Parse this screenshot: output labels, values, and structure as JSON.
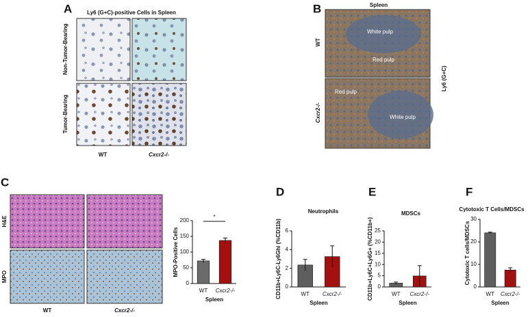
{
  "panels": {
    "a": {
      "label": "A",
      "title": "Ly6 (G+C)-positive Cells in Spleen",
      "rows": [
        "Non-Tumor-Bearing",
        "Tumor-Bearing"
      ],
      "cols": [
        "WT",
        "Cxcr2-/-"
      ]
    },
    "b": {
      "label": "B",
      "title": "Spleen",
      "rows": [
        "WT",
        "Cxcr2-/-"
      ],
      "stain": "Ly6 (G+C)",
      "regions": [
        "White pulp",
        "Red pulp",
        "Red pulp",
        "White pulp"
      ]
    },
    "c": {
      "label": "C",
      "rows": [
        "H&E",
        "MPO"
      ],
      "cols": [
        "WT",
        "Cxcr2-/-"
      ]
    },
    "d": {
      "label": "D"
    },
    "e": {
      "label": "E"
    },
    "f": {
      "label": "F"
    }
  },
  "chart_data": [
    {
      "type": "bar",
      "y_label": "MPO-Positive Cells",
      "x_label": "Spleen",
      "categories": [
        "WT",
        "Cxcr2-/-"
      ],
      "values": [
        72,
        137
      ],
      "errors": [
        5,
        8
      ],
      "colors": [
        "#6b6b6b",
        "#a3100f"
      ],
      "ylim": [
        0,
        200
      ],
      "yticks": [
        0,
        50,
        100,
        150,
        200
      ],
      "annotation": "*"
    },
    {
      "type": "bar",
      "title": "Neutrophils",
      "y_label": "CD11b+Ly6C-Ly6Ghi (%CD11b)",
      "x_label": "Spleen",
      "categories": [
        "WT",
        "Cxcr2-/-"
      ],
      "values": [
        2.35,
        3.25
      ],
      "errors": [
        0.6,
        1.15
      ],
      "colors": [
        "#5e5e5e",
        "#a3100f"
      ],
      "ylim": [
        0,
        6
      ],
      "yticks": [
        0,
        2,
        4,
        6
      ]
    },
    {
      "type": "bar",
      "title": "MDSCs",
      "y_label": "CD11b+Ly6C+Ly6G+ (%CD11b+)",
      "x_label": "Spleen",
      "categories": [
        "WT",
        "Cxcr2-/-"
      ],
      "values": [
        1.7,
        4.9
      ],
      "errors": [
        0.5,
        4.6
      ],
      "colors": [
        "#5e5e5e",
        "#a3100f"
      ],
      "ylim": [
        0,
        25
      ],
      "yticks": [
        0,
        5,
        10,
        15,
        20,
        25
      ]
    },
    {
      "type": "bar",
      "title": "Cytotoxic T Cells/MDSCs",
      "y_label": "Cytotoxic T cells/MDSCs",
      "x_label": "Spleen",
      "categories": [
        "WT",
        "Cxcr2-/-"
      ],
      "values": [
        24,
        7.5
      ],
      "errors": [
        0.3,
        1
      ],
      "colors": [
        "#5e5e5e",
        "#a3100f"
      ],
      "ylim": [
        0,
        30
      ],
      "yticks": [
        0,
        10,
        20,
        30
      ]
    }
  ]
}
